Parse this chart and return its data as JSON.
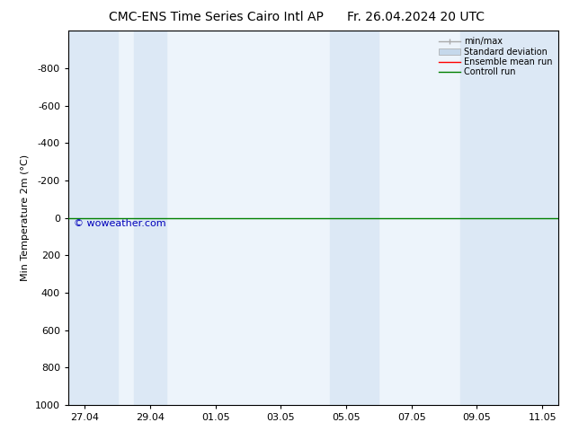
{
  "title_left": "CMC-ENS Time Series Cairo Intl AP",
  "title_right": "Fr. 26.04.2024 20 UTC",
  "ylabel": "Min Temperature 2m (°C)",
  "ylim_top": -1000,
  "ylim_bottom": 1000,
  "yticks": [
    -800,
    -600,
    -400,
    -200,
    0,
    200,
    400,
    600,
    800,
    1000
  ],
  "xtick_labels": [
    "27.04",
    "29.04",
    "01.05",
    "03.05",
    "05.05",
    "07.05",
    "09.05",
    "11.05"
  ],
  "xtick_positions": [
    0,
    2,
    4,
    6,
    8,
    10,
    12,
    14
  ],
  "xlim": [
    -0.5,
    14.5
  ],
  "shaded_bands": [
    [
      -0.5,
      1.0
    ],
    [
      1.5,
      2.5
    ],
    [
      7.5,
      9.0
    ],
    [
      11.5,
      14.5
    ]
  ],
  "shaded_color": "#dce8f5",
  "background_color": "#ffffff",
  "plot_bg_color": "#edf4fb",
  "control_run_color": "#008000",
  "ensemble_mean_color": "#ff0000",
  "control_run_y": 0,
  "watermark_text": "© woweather.com",
  "watermark_color": "#0000bb",
  "title_fontsize": 10,
  "axis_fontsize": 8,
  "tick_fontsize": 8,
  "legend_fontsize": 7
}
